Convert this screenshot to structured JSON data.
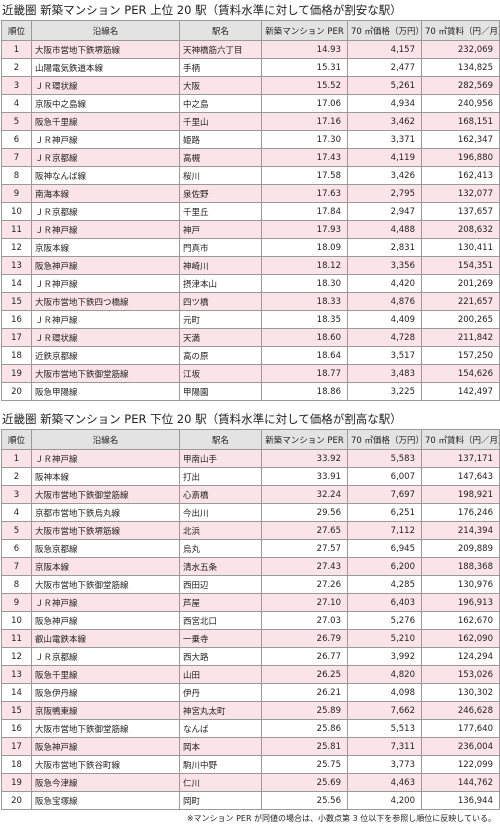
{
  "tables": [
    {
      "title": "近畿圏 新築マンション PER 上位 20 駅（賃料水準に対して価格が割安な駅）",
      "headers": [
        "順位",
        "沿線名",
        "駅名",
        "新築マンション PER",
        "70 ㎡価格（万円）",
        "70 ㎡賃料（円／月）"
      ],
      "rows": [
        [
          "1",
          "大阪市営地下鉄堺筋線",
          "天神橋筋六丁目",
          "14.93",
          "4,157",
          "232,069"
        ],
        [
          "2",
          "山陽電気鉄道本線",
          "手柄",
          "15.31",
          "2,477",
          "134,825"
        ],
        [
          "3",
          "ＪＲ環状線",
          "大阪",
          "15.52",
          "5,261",
          "282,569"
        ],
        [
          "4",
          "京阪中之島線",
          "中之島",
          "17.06",
          "4,934",
          "240,956"
        ],
        [
          "5",
          "阪急千里線",
          "千里山",
          "17.16",
          "3,462",
          "168,151"
        ],
        [
          "6",
          "ＪＲ神戸線",
          "姫路",
          "17.30",
          "3,371",
          "162,347"
        ],
        [
          "7",
          "ＪＲ京都線",
          "高槻",
          "17.43",
          "4,119",
          "196,880"
        ],
        [
          "8",
          "阪神なんば線",
          "桜川",
          "17.58",
          "3,426",
          "162,413"
        ],
        [
          "9",
          "南海本線",
          "泉佐野",
          "17.63",
          "2,795",
          "132,077"
        ],
        [
          "10",
          "ＪＲ京都線",
          "千里丘",
          "17.84",
          "2,947",
          "137,657"
        ],
        [
          "11",
          "ＪＲ神戸線",
          "神戸",
          "17.93",
          "4,488",
          "208,632"
        ],
        [
          "12",
          "京阪本線",
          "門真市",
          "18.09",
          "2,831",
          "130,411"
        ],
        [
          "13",
          "阪急神戸線",
          "神崎川",
          "18.12",
          "3,356",
          "154,351"
        ],
        [
          "14",
          "ＪＲ神戸線",
          "摂津本山",
          "18.30",
          "4,420",
          "201,269"
        ],
        [
          "15",
          "大阪市営地下鉄四つ橋線",
          "四ツ橋",
          "18.33",
          "4,876",
          "221,657"
        ],
        [
          "16",
          "ＪＲ神戸線",
          "元町",
          "18.35",
          "4,409",
          "200,265"
        ],
        [
          "17",
          "ＪＲ環状線",
          "天満",
          "18.60",
          "4,728",
          "211,842"
        ],
        [
          "18",
          "近鉄京都線",
          "高の原",
          "18.64",
          "3,517",
          "157,250"
        ],
        [
          "19",
          "大阪市営地下鉄御堂筋線",
          "江坂",
          "18.77",
          "3,483",
          "154,626"
        ],
        [
          "20",
          "阪急甲陽線",
          "甲陽園",
          "18.86",
          "3,225",
          "142,497"
        ]
      ]
    },
    {
      "title": "近畿圏 新築マンション PER 下位 20 駅（賃料水準に対して価格が割高な駅）",
      "headers": [
        "順位",
        "沿線名",
        "駅名",
        "新築マンション PER",
        "70 ㎡価格（万円）",
        "70 ㎡賃料（円／月）"
      ],
      "rows": [
        [
          "1",
          "ＪＲ神戸線",
          "甲南山手",
          "33.92",
          "5,583",
          "137,171"
        ],
        [
          "2",
          "阪神本線",
          "打出",
          "33.91",
          "6,007",
          "147,643"
        ],
        [
          "3",
          "大阪市営地下鉄御堂筋線",
          "心斎橋",
          "32.24",
          "7,697",
          "198,921"
        ],
        [
          "4",
          "京都市営地下鉄烏丸線",
          "今出川",
          "29.56",
          "6,251",
          "176,246"
        ],
        [
          "5",
          "大阪市営地下鉄堺筋線",
          "北浜",
          "27.65",
          "7,112",
          "214,394"
        ],
        [
          "6",
          "阪急京都線",
          "烏丸",
          "27.57",
          "6,945",
          "209,889"
        ],
        [
          "7",
          "京阪本線",
          "清水五条",
          "27.43",
          "6,200",
          "188,368"
        ],
        [
          "8",
          "大阪市営地下鉄御堂筋線",
          "西田辺",
          "27.26",
          "4,285",
          "130,976"
        ],
        [
          "9",
          "ＪＲ神戸線",
          "芦屋",
          "27.10",
          "6,403",
          "196,913"
        ],
        [
          "10",
          "阪急神戸線",
          "西宮北口",
          "27.03",
          "5,276",
          "162,670"
        ],
        [
          "11",
          "叡山電鉄本線",
          "一乗寺",
          "26.79",
          "5,210",
          "162,090"
        ],
        [
          "12",
          "ＪＲ京都線",
          "西大路",
          "26.77",
          "3,992",
          "124,294"
        ],
        [
          "13",
          "阪急千里線",
          "山田",
          "26.25",
          "4,820",
          "153,026"
        ],
        [
          "14",
          "阪急伊丹線",
          "伊丹",
          "26.21",
          "4,098",
          "130,302"
        ],
        [
          "15",
          "京阪鴨東線",
          "神宮丸太町",
          "25.89",
          "7,662",
          "246,628"
        ],
        [
          "16",
          "大阪市営地下鉄御堂筋線",
          "なんば",
          "25.86",
          "5,513",
          "177,640"
        ],
        [
          "17",
          "阪急神戸線",
          "岡本",
          "25.81",
          "7,311",
          "236,004"
        ],
        [
          "18",
          "大阪市営地下鉄谷町線",
          "駒川中野",
          "25.75",
          "3,773",
          "122,099"
        ],
        [
          "19",
          "阪急今津線",
          "仁川",
          "25.69",
          "4,463",
          "144,762"
        ],
        [
          "20",
          "阪急宝塚線",
          "岡町",
          "25.56",
          "4,200",
          "136,944"
        ]
      ]
    }
  ],
  "note": "※マンション PER が同値の場合は、小数点第 3 位以下を参照し順位に反映している。"
}
